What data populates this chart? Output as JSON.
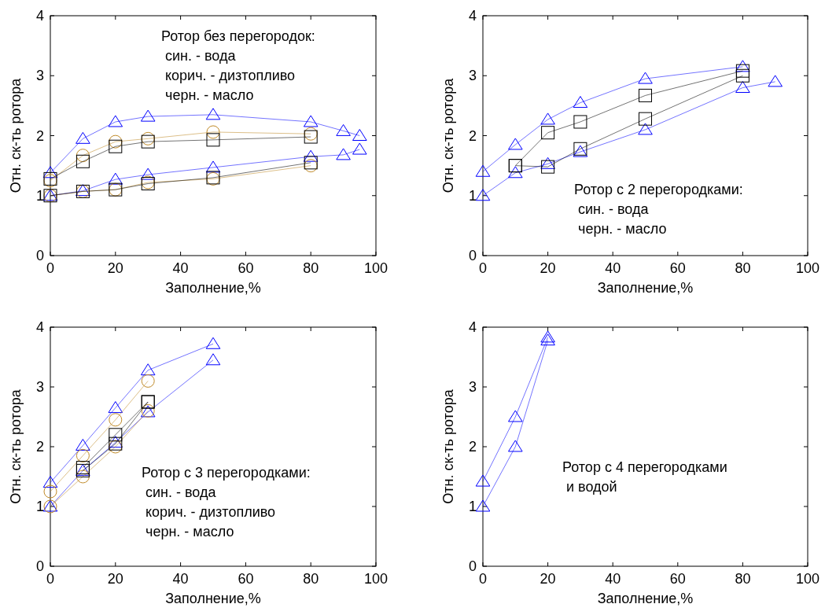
{
  "chart_data": [
    {
      "type": "line",
      "xlabel": "Заполнение,%",
      "ylabel": "Отн. ск-ть ротора",
      "xlim": [
        0,
        100
      ],
      "ylim": [
        0,
        4
      ],
      "xticks": [
        0,
        20,
        40,
        60,
        80,
        100
      ],
      "yticks": [
        0,
        1,
        2,
        3,
        4
      ],
      "annotations": [
        "Ротор без перегородок:",
        " син. - вода",
        " корич. - дизтопливо",
        " черн. - масло"
      ],
      "series": [
        {
          "color": "#0000ff",
          "marker": "triangle",
          "x": [
            0,
            10,
            20,
            30,
            50,
            80,
            90,
            95
          ],
          "values": [
            1.38,
            1.95,
            2.23,
            2.32,
            2.35,
            2.23,
            2.08,
            2.0
          ]
        },
        {
          "color": "#0000ff",
          "marker": "triangle",
          "x": [
            0,
            10,
            20,
            30,
            50,
            80,
            90,
            95
          ],
          "values": [
            1.0,
            1.08,
            1.27,
            1.35,
            1.47,
            1.65,
            1.68,
            1.77
          ]
        },
        {
          "color": "#c08a28",
          "marker": "circle",
          "x": [
            0,
            10,
            20,
            30,
            50,
            80
          ],
          "values": [
            1.25,
            1.67,
            1.9,
            1.95,
            2.06,
            2.03
          ]
        },
        {
          "color": "#c08a28",
          "marker": "circle",
          "x": [
            0,
            10,
            20,
            30,
            50,
            80
          ],
          "values": [
            1.0,
            1.07,
            1.1,
            1.22,
            1.28,
            1.5
          ]
        },
        {
          "color": "#000000",
          "marker": "square",
          "x": [
            0,
            10,
            20,
            30,
            50,
            80
          ],
          "values": [
            1.28,
            1.57,
            1.82,
            1.9,
            1.93,
            1.98
          ]
        },
        {
          "color": "#000000",
          "marker": "square",
          "x": [
            0,
            10,
            20,
            30,
            50,
            80
          ],
          "values": [
            1.0,
            1.07,
            1.1,
            1.2,
            1.3,
            1.55
          ]
        }
      ]
    },
    {
      "type": "line",
      "xlabel": "Заполнение,%",
      "ylabel": "Отн. ск-ть ротора",
      "xlim": [
        0,
        100
      ],
      "ylim": [
        0,
        4
      ],
      "xticks": [
        0,
        20,
        40,
        60,
        80,
        100
      ],
      "yticks": [
        0,
        1,
        2,
        3,
        4
      ],
      "annotations": [
        "Ротор с 2 перегородками:",
        " син. - вода",
        " черн. - масло"
      ],
      "series": [
        {
          "color": "#0000ff",
          "marker": "triangle",
          "x": [
            0,
            10,
            20,
            30,
            50,
            80
          ],
          "values": [
            1.4,
            1.85,
            2.27,
            2.55,
            2.95,
            3.15
          ]
        },
        {
          "color": "#0000ff",
          "marker": "triangle",
          "x": [
            0,
            10,
            20,
            30,
            50,
            80,
            90
          ],
          "values": [
            1.0,
            1.38,
            1.53,
            1.73,
            2.1,
            2.8,
            2.9
          ]
        },
        {
          "color": "#000000",
          "marker": "square",
          "x": [
            10,
            20,
            30,
            50,
            80
          ],
          "values": [
            1.5,
            2.05,
            2.23,
            2.67,
            3.08
          ]
        },
        {
          "color": "#000000",
          "marker": "square",
          "x": [
            10,
            20,
            30,
            50,
            80
          ],
          "values": [
            1.5,
            1.48,
            1.78,
            2.28,
            3.0
          ]
        }
      ]
    },
    {
      "type": "line",
      "xlabel": "Заполнение,%",
      "ylabel": "Отн. ск-ть ротора",
      "xlim": [
        0,
        100
      ],
      "ylim": [
        0,
        4
      ],
      "xticks": [
        0,
        20,
        40,
        60,
        80,
        100
      ],
      "yticks": [
        0,
        1,
        2,
        3,
        4
      ],
      "annotations": [
        "Ротор с 3 перегородками:",
        " син. - вода",
        " корич. - дизтопливо",
        " черн. - масло"
      ],
      "series": [
        {
          "color": "#0000ff",
          "marker": "triangle",
          "x": [
            0,
            10,
            20,
            30,
            50
          ],
          "values": [
            1.4,
            2.02,
            2.65,
            3.28,
            3.72
          ]
        },
        {
          "color": "#0000ff",
          "marker": "triangle",
          "x": [
            0,
            10,
            20,
            30,
            50
          ],
          "values": [
            1.0,
            1.6,
            2.07,
            2.58,
            3.45
          ]
        },
        {
          "color": "#c08a28",
          "marker": "circle",
          "x": [
            0,
            10,
            20,
            30
          ],
          "values": [
            1.25,
            1.85,
            2.45,
            3.1
          ]
        },
        {
          "color": "#c08a28",
          "marker": "circle",
          "x": [
            0,
            10,
            20,
            30
          ],
          "values": [
            1.0,
            1.5,
            2.0,
            2.6
          ]
        },
        {
          "color": "#000000",
          "marker": "square",
          "x": [
            10,
            20,
            30
          ],
          "values": [
            1.65,
            2.2,
            2.75
          ]
        },
        {
          "color": "#000000",
          "marker": "square",
          "x": [
            10,
            20,
            30
          ],
          "values": [
            1.6,
            2.05,
            2.75
          ]
        }
      ]
    },
    {
      "type": "line",
      "xlabel": "Заполнение,%",
      "ylabel": "Отн. ск-ть ротора",
      "xlim": [
        0,
        100
      ],
      "ylim": [
        0,
        4
      ],
      "xticks": [
        0,
        20,
        40,
        60,
        80,
        100
      ],
      "yticks": [
        0,
        1,
        2,
        3,
        4
      ],
      "annotations": [
        "Ротор с 4 перегородками",
        " и водой"
      ],
      "series": [
        {
          "color": "#0000ff",
          "marker": "triangle",
          "x": [
            0,
            10,
            20
          ],
          "values": [
            1.42,
            2.5,
            3.83
          ]
        },
        {
          "color": "#0000ff",
          "marker": "triangle",
          "x": [
            0,
            10,
            20
          ],
          "values": [
            1.0,
            2.0,
            3.78
          ]
        }
      ]
    }
  ]
}
